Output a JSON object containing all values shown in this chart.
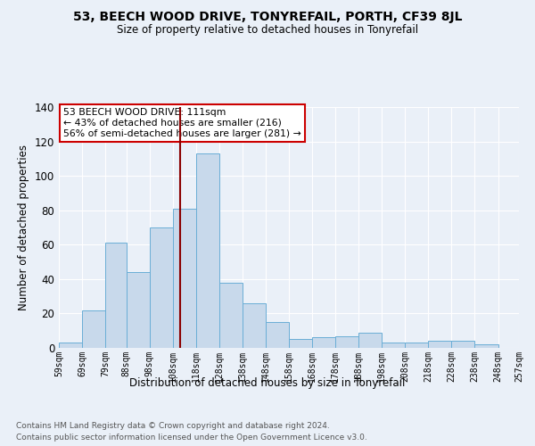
{
  "title": "53, BEECH WOOD DRIVE, TONYREFAIL, PORTH, CF39 8JL",
  "subtitle": "Size of property relative to detached houses in Tonyrefail",
  "xlabel": "Distribution of detached houses by size in Tonyrefail",
  "ylabel": "Number of detached properties",
  "bar_color": "#c8d9eb",
  "bar_edge_color": "#6aaed6",
  "bg_color": "#eaf0f8",
  "grid_color": "#ffffff",
  "fig_bg_color": "#eaf0f8",
  "bins": [
    59,
    69,
    79,
    88,
    98,
    108,
    118,
    128,
    138,
    148,
    158,
    168,
    178,
    188,
    198,
    208,
    218,
    228,
    238,
    248,
    257
  ],
  "bin_labels": [
    "59sqm",
    "69sqm",
    "79sqm",
    "88sqm",
    "98sqm",
    "108sqm",
    "118sqm",
    "128sqm",
    "138sqm",
    "148sqm",
    "158sqm",
    "168sqm",
    "178sqm",
    "188sqm",
    "198sqm",
    "208sqm",
    "218sqm",
    "228sqm",
    "238sqm",
    "248sqm",
    "257sqm"
  ],
  "counts": [
    3,
    22,
    61,
    44,
    70,
    81,
    113,
    38,
    26,
    15,
    5,
    6,
    7,
    9,
    3,
    3,
    4,
    4,
    2,
    0
  ],
  "property_size": 111,
  "annotation_title": "53 BEECH WOOD DRIVE: 111sqm",
  "annotation_line1": "← 43% of detached houses are smaller (216)",
  "annotation_line2": "56% of semi-detached houses are larger (281) →",
  "vline_color": "#8b0000",
  "annotation_box_color": "#ffffff",
  "annotation_box_edge": "#cc0000",
  "footnote1": "Contains HM Land Registry data © Crown copyright and database right 2024.",
  "footnote2": "Contains public sector information licensed under the Open Government Licence v3.0.",
  "ylim": [
    0,
    140
  ]
}
